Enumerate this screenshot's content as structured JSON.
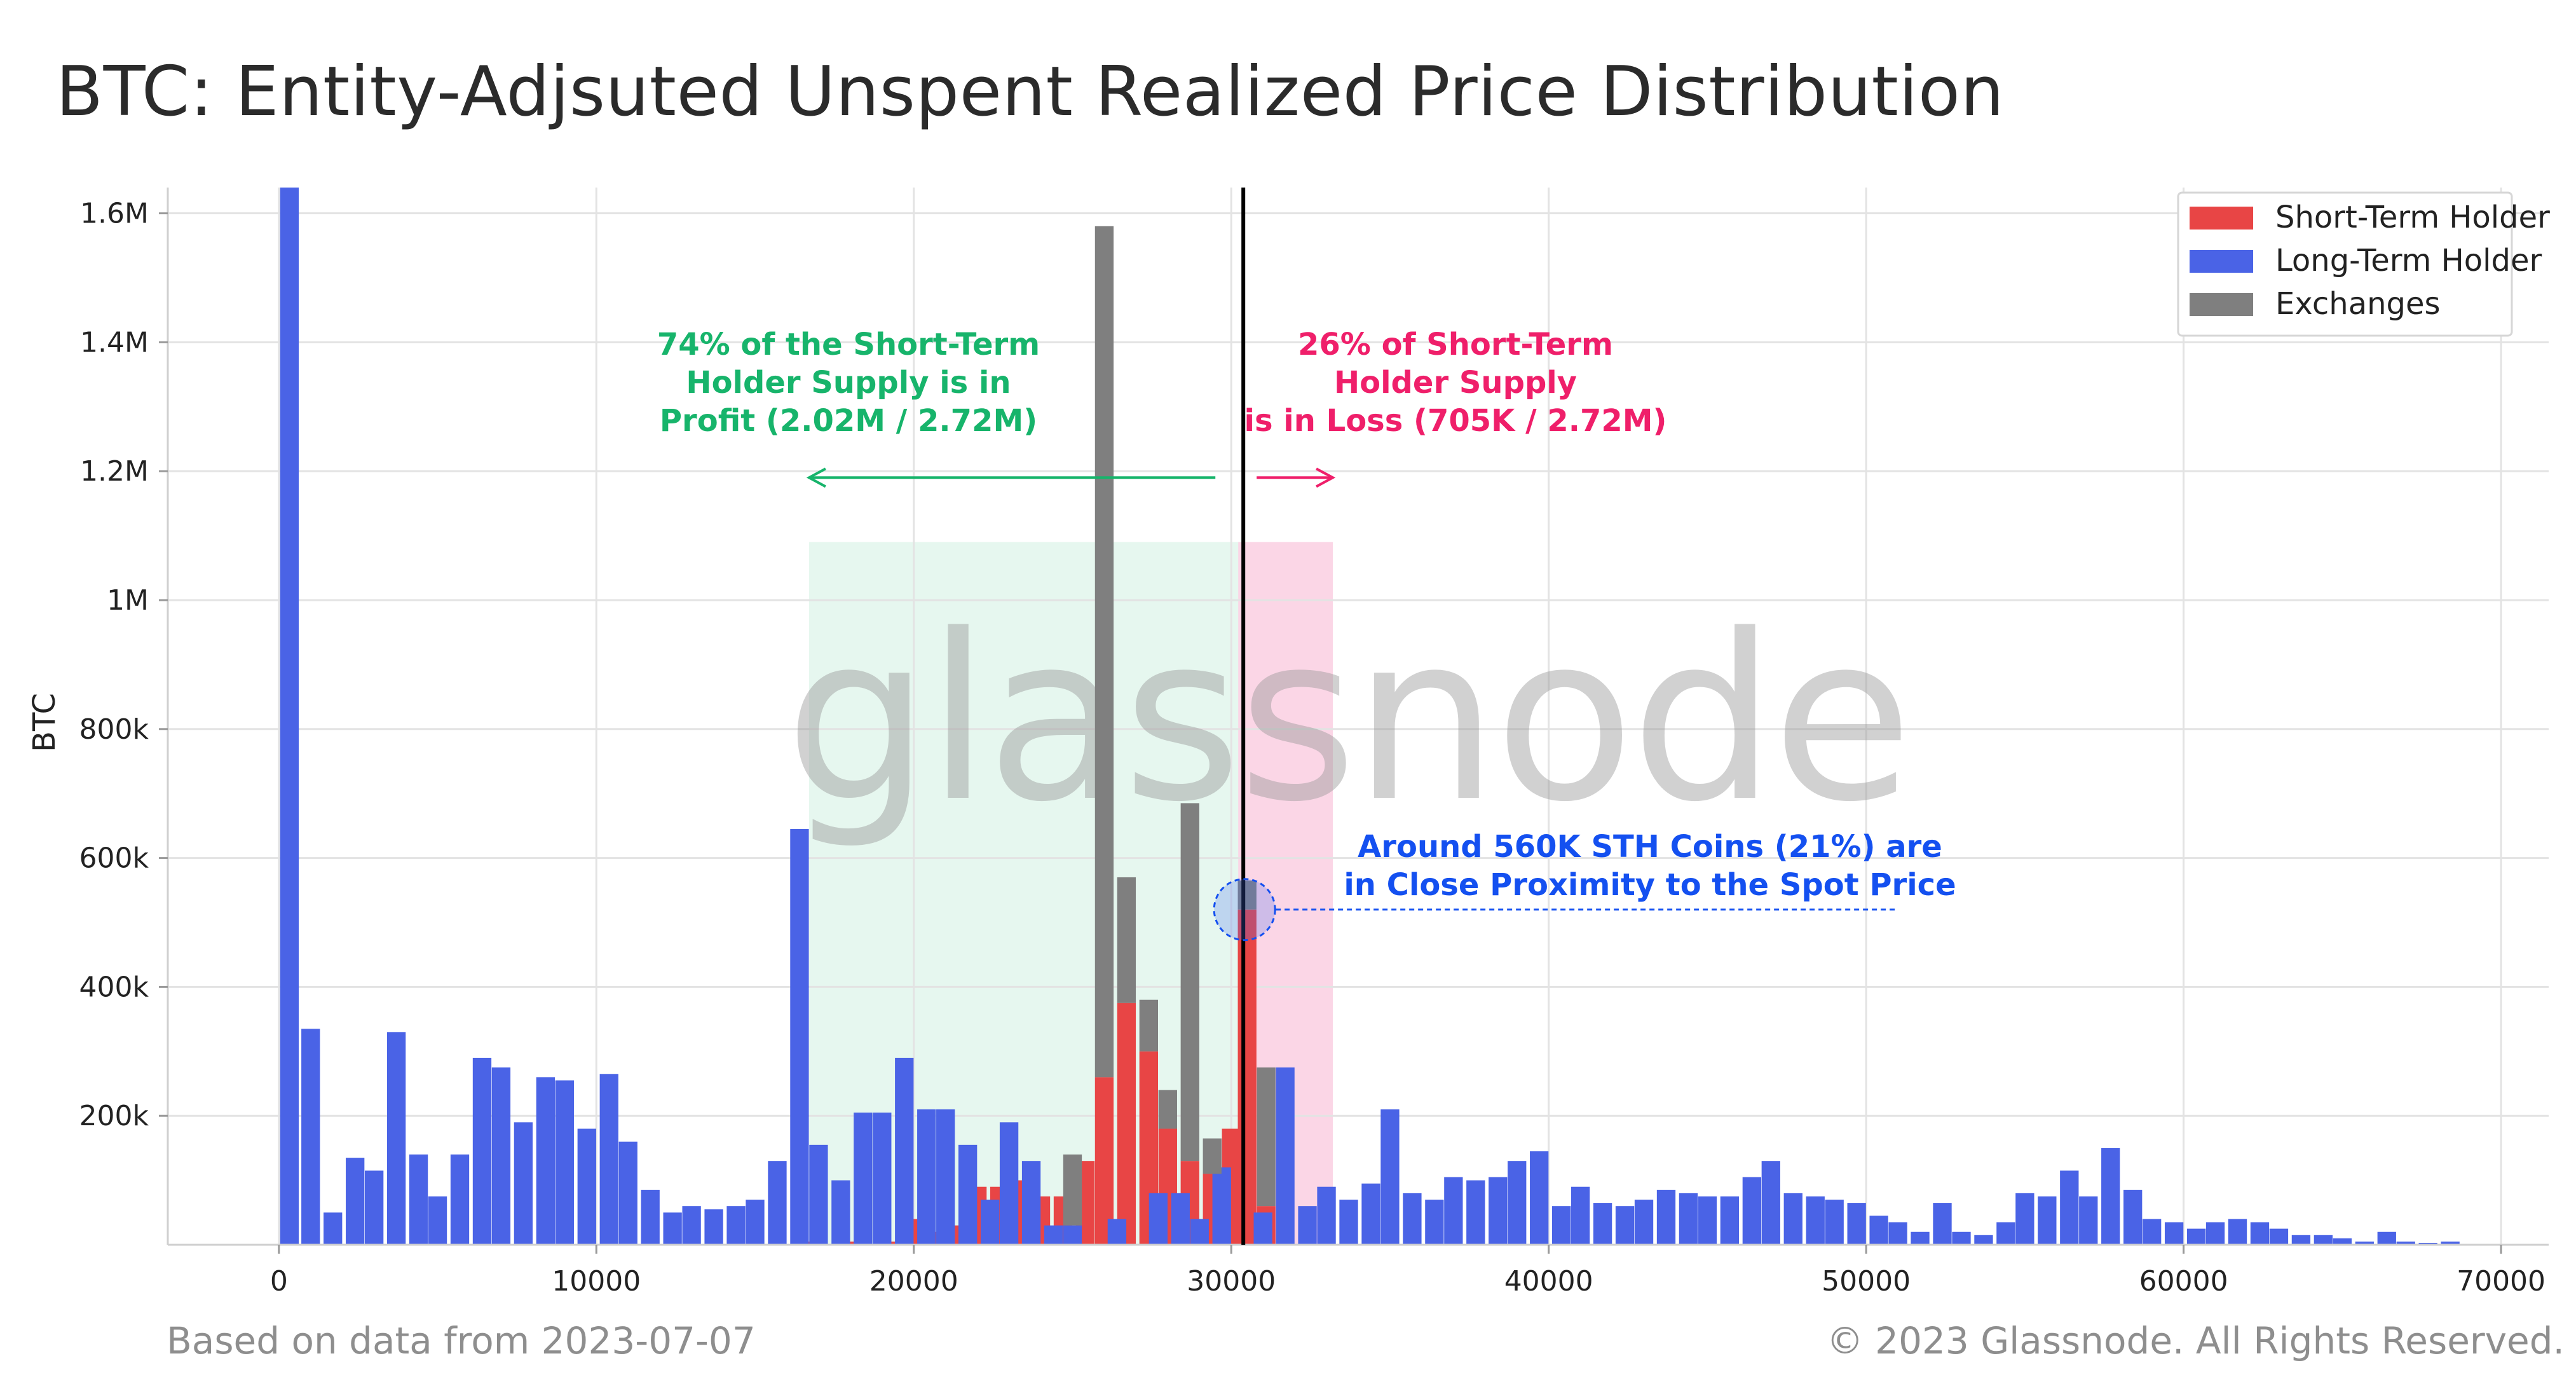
{
  "title": "BTC: Entity-Adjsuted Unspent Realized Price Distribution",
  "footer_left": "Based on data from 2023-07-07",
  "footer_right": "© 2023 Glassnode. All Rights Reserved.",
  "watermark": "glassnode",
  "colors": {
    "sth": "#e84545",
    "lth": "#4a63e6",
    "exchanges": "#7f7f7f",
    "profit_zone": "#e6f7ef",
    "loss_zone": "#fbd6e6",
    "profit_text": "#17b46b",
    "loss_text": "#ef1f6a",
    "proximity_text": "#1450f0"
  },
  "annotations": {
    "profit": [
      "74% of the Short-Term",
      "Holder Supply is in",
      "Profit (2.02M / 2.72M)"
    ],
    "loss": [
      "26% of Short-Term",
      "Holder Supply",
      "is in Loss (705K / 2.72M)"
    ],
    "proximity": [
      "Around 560K STH Coins (21%) are",
      "in Close Proximity to the Spot Price"
    ]
  },
  "chart_data": {
    "type": "bar",
    "stacked": true,
    "ylabel": "BTC",
    "xlabel": "",
    "xlim": [
      -3500,
      71500
    ],
    "ylim": [
      0,
      1640000
    ],
    "xticks": [
      0,
      10000,
      20000,
      30000,
      40000,
      50000,
      60000,
      70000
    ],
    "xtick_labels": [
      "0",
      "10000",
      "20000",
      "30000",
      "40000",
      "50000",
      "60000",
      "70000"
    ],
    "yticks": [
      200000,
      400000,
      600000,
      800000,
      1000000,
      1200000,
      1400000,
      1600000
    ],
    "ytick_labels": [
      "200k",
      "400k",
      "600k",
      "800k",
      "1M",
      "1.2M",
      "1.4M",
      "1.6M"
    ],
    "grid": true,
    "legend_position": "top-right",
    "bin_width": 667,
    "spot_price": 30500,
    "profit_zone": [
      16700,
      30500
    ],
    "loss_zone": [
      30500,
      33200
    ],
    "zone_top": 1090000,
    "profit_arrow": {
      "from": 29500,
      "to": 16700,
      "y": 1190000
    },
    "loss_arrow": {
      "from": 30800,
      "to": 33200,
      "y": 1190000
    },
    "proximity_circle": {
      "x": 30500,
      "y": 520000
    },
    "proximity_leader": {
      "from": 31400,
      "to": 51000,
      "y": 520000
    },
    "series": [
      {
        "name": "Short-Term Holder",
        "points": [
          [
            16700,
            5000
          ],
          [
            18000,
            5000
          ],
          [
            19400,
            5000
          ],
          [
            20000,
            40000
          ],
          [
            20700,
            20000
          ],
          [
            21400,
            30000
          ],
          [
            22000,
            90000
          ],
          [
            22700,
            90000
          ],
          [
            23400,
            100000
          ],
          [
            24000,
            75000
          ],
          [
            24700,
            75000
          ],
          [
            25400,
            130000
          ],
          [
            26000,
            260000
          ],
          [
            26700,
            375000
          ],
          [
            27400,
            300000
          ],
          [
            28000,
            180000
          ],
          [
            28700,
            130000
          ],
          [
            29400,
            110000
          ],
          [
            30000,
            180000
          ],
          [
            30500,
            520000
          ],
          [
            31100,
            60000
          ]
        ]
      },
      {
        "name": "Long-Term Holder",
        "points": [
          [
            333,
            1640000
          ],
          [
            1000,
            335000
          ],
          [
            1700,
            50000
          ],
          [
            2400,
            135000
          ],
          [
            3000,
            115000
          ],
          [
            3700,
            330000
          ],
          [
            4400,
            140000
          ],
          [
            5000,
            75000
          ],
          [
            5700,
            140000
          ],
          [
            6400,
            290000
          ],
          [
            7000,
            275000
          ],
          [
            7700,
            190000
          ],
          [
            8400,
            260000
          ],
          [
            9000,
            255000
          ],
          [
            9700,
            180000
          ],
          [
            10400,
            265000
          ],
          [
            11000,
            160000
          ],
          [
            11700,
            85000
          ],
          [
            12400,
            50000
          ],
          [
            13000,
            60000
          ],
          [
            13700,
            55000
          ],
          [
            14400,
            60000
          ],
          [
            15000,
            70000
          ],
          [
            15700,
            130000
          ],
          [
            16400,
            645000
          ],
          [
            17000,
            155000
          ],
          [
            17700,
            100000
          ],
          [
            18400,
            205000
          ],
          [
            19000,
            205000
          ],
          [
            19700,
            290000
          ],
          [
            20400,
            210000
          ],
          [
            21000,
            210000
          ],
          [
            21700,
            155000
          ],
          [
            22400,
            70000
          ],
          [
            23000,
            190000
          ],
          [
            23700,
            130000
          ],
          [
            24400,
            30000
          ],
          [
            25000,
            30000
          ],
          [
            25700,
            0
          ],
          [
            26400,
            40000
          ],
          [
            27000,
            0
          ],
          [
            27700,
            80000
          ],
          [
            28400,
            80000
          ],
          [
            29000,
            40000
          ],
          [
            29700,
            120000
          ],
          [
            30400,
            0
          ],
          [
            31000,
            50000
          ],
          [
            31700,
            275000
          ],
          [
            32400,
            60000
          ],
          [
            33000,
            90000
          ],
          [
            33700,
            70000
          ],
          [
            34400,
            95000
          ],
          [
            35000,
            210000
          ],
          [
            35700,
            80000
          ],
          [
            36400,
            70000
          ],
          [
            37000,
            105000
          ],
          [
            37700,
            100000
          ],
          [
            38400,
            105000
          ],
          [
            39000,
            130000
          ],
          [
            39700,
            145000
          ],
          [
            40400,
            60000
          ],
          [
            41000,
            90000
          ],
          [
            41700,
            65000
          ],
          [
            42400,
            60000
          ],
          [
            43000,
            70000
          ],
          [
            43700,
            85000
          ],
          [
            44400,
            80000
          ],
          [
            45000,
            75000
          ],
          [
            45700,
            75000
          ],
          [
            46400,
            105000
          ],
          [
            47000,
            130000
          ],
          [
            47700,
            80000
          ],
          [
            48400,
            75000
          ],
          [
            49000,
            70000
          ],
          [
            49700,
            65000
          ],
          [
            50400,
            45000
          ],
          [
            51000,
            35000
          ],
          [
            51700,
            20000
          ],
          [
            52400,
            65000
          ],
          [
            53000,
            20000
          ],
          [
            53700,
            15000
          ],
          [
            54400,
            35000
          ],
          [
            55000,
            80000
          ],
          [
            55700,
            75000
          ],
          [
            56400,
            115000
          ],
          [
            57000,
            75000
          ],
          [
            57700,
            150000
          ],
          [
            58400,
            85000
          ],
          [
            59000,
            40000
          ],
          [
            59700,
            35000
          ],
          [
            60400,
            25000
          ],
          [
            61000,
            35000
          ],
          [
            61700,
            40000
          ],
          [
            62400,
            35000
          ],
          [
            63000,
            25000
          ],
          [
            63700,
            15000
          ],
          [
            64400,
            15000
          ],
          [
            65000,
            10000
          ],
          [
            65700,
            5000
          ],
          [
            66400,
            20000
          ],
          [
            67000,
            5000
          ],
          [
            67700,
            3000
          ],
          [
            68400,
            5000
          ]
        ]
      },
      {
        "name": "Exchanges",
        "points": [
          [
            25000,
            110000
          ],
          [
            26000,
            1320000
          ],
          [
            26700,
            195000
          ],
          [
            27400,
            80000
          ],
          [
            28000,
            60000
          ],
          [
            28700,
            555000
          ],
          [
            29400,
            55000
          ],
          [
            30000,
            0
          ],
          [
            30500,
            45000
          ],
          [
            31100,
            215000
          ]
        ]
      }
    ]
  }
}
